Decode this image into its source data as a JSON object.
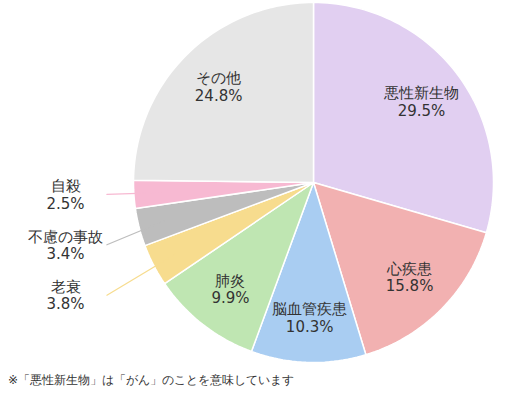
{
  "chart_data": {
    "type": "pie",
    "categories": [
      "悪性新生物",
      "心疾患",
      "脳血管疾患",
      "肺炎",
      "老衰",
      "不慮の事故",
      "自殺",
      "その他"
    ],
    "values": [
      29.5,
      15.8,
      10.3,
      9.9,
      3.8,
      3.4,
      2.5,
      24.8
    ],
    "value_labels": [
      "29.5%",
      "15.8%",
      "10.3%",
      "9.9%",
      "3.8%",
      "3.4%",
      "2.5%",
      "24.8%"
    ],
    "colors": [
      "#e1cff1",
      "#f2b1b1",
      "#a9cdf2",
      "#bfe6b2",
      "#f7dc8e",
      "#bdbdbd",
      "#f7b9d2",
      "#e6e6e6"
    ],
    "data_labels": true,
    "note": "※「悪性新生物」は「がん」のことを意味しています"
  }
}
